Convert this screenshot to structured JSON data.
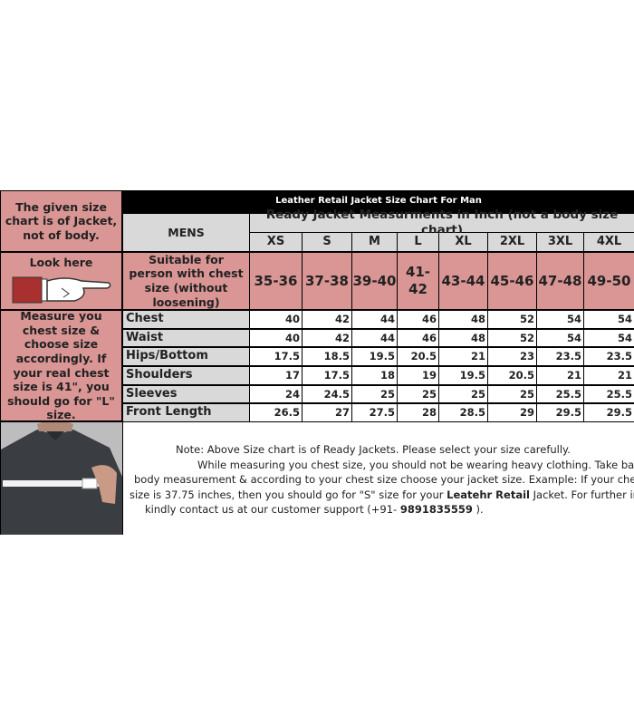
{
  "title": "Leather Retail Jacket Size Chart For Man",
  "left_notes": {
    "top": "The given size chart is of Jacket, not of body.",
    "look_here": "Look here",
    "measure": "Measure you chest size & choose size accordingly. If your real chest size is 41\", you should go for \"L\" size."
  },
  "mens_label": "MENS",
  "subheader": "Ready Jacket Measurments in Inch (not a body size chart)",
  "suitable_label": "Suitable for person with chest size (without loosening)",
  "sizes": [
    "XS",
    "S",
    "M",
    "L",
    "XL",
    "2XL",
    "3XL",
    "4XL"
  ],
  "chest_ranges": [
    "35-36",
    "37-38",
    "39-40",
    "41-42",
    "43-44",
    "45-46",
    "47-48",
    "49-50"
  ],
  "rows": [
    {
      "label": "Chest",
      "values": [
        "40",
        "42",
        "44",
        "46",
        "48",
        "52",
        "54",
        "54"
      ]
    },
    {
      "label": "Waist",
      "values": [
        "40",
        "42",
        "44",
        "46",
        "48",
        "52",
        "54",
        "54"
      ]
    },
    {
      "label": "Hips/Bottom",
      "values": [
        "17.5",
        "18.5",
        "19.5",
        "20.5",
        "21",
        "23",
        "23.5",
        "23.5"
      ]
    },
    {
      "label": "Shoulders",
      "values": [
        "17",
        "17.5",
        "18",
        "19",
        "19.5",
        "20.5",
        "21",
        "21"
      ]
    },
    {
      "label": "Sleeves",
      "values": [
        "24",
        "24.5",
        "25",
        "25",
        "25",
        "25",
        "25.5",
        "25.5"
      ]
    },
    {
      "label": "Front Length",
      "values": [
        "26.5",
        "27",
        "27.5",
        "28",
        "28.5",
        "29",
        "29.5",
        "29.5"
      ]
    }
  ],
  "note": {
    "line1": "Note: Above Size chart is of Ready Jackets. Please select your size carefully.",
    "line2": "While measuring you chest size, you should not be wearing heavy clothing. Take bare",
    "line3": "body measurement & according to your chest size choose your jacket size. Example: If your chest",
    "line4a": "size is 37.75 inches, then you should go for \"S\" size for your ",
    "brand": "Leatehr Retail",
    "line4b": " Jacket. For further info",
    "line5a": "kindly contact us at our customer support (+91- ",
    "phone": "9891835559",
    "line5b": " )."
  },
  "icons": [
    "pointing-hand-icon",
    "measuring-chest-photo"
  ],
  "colors": {
    "pink": "#d99694",
    "gray": "#d9d9d9",
    "header": "#000000"
  }
}
